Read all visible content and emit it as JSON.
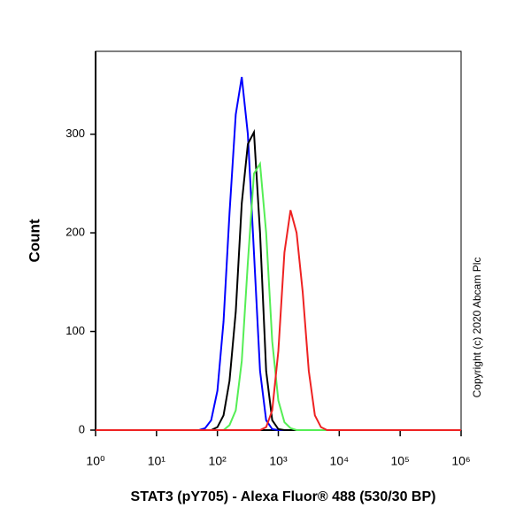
{
  "chart_data": {
    "type": "line",
    "x_label": "STAT3 (pY705) - Alexa Fluor® 488 (530/30 BP)",
    "y_label": "Count",
    "annotation": "Copyright (c) 2020 Abcam Plc",
    "xscale": "log",
    "x": [
      1,
      32,
      50,
      63,
      79,
      100,
      126,
      158,
      200,
      251,
      316,
      398,
      501,
      631,
      794,
      1000,
      1259,
      1585,
      1995,
      2512,
      3162,
      3981,
      5012,
      6310,
      10000,
      1000000
    ],
    "series": [
      {
        "color": "#0000ff",
        "values": [
          0,
          0,
          0,
          2,
          10,
          40,
          110,
          220,
          320,
          358,
          300,
          180,
          60,
          10,
          1,
          0,
          0,
          0,
          0,
          0,
          0,
          0,
          0,
          0,
          0,
          0
        ]
      },
      {
        "color": "#000000",
        "values": [
          0,
          0,
          0,
          0,
          0,
          3,
          15,
          50,
          120,
          230,
          290,
          302,
          200,
          60,
          10,
          1,
          0,
          0,
          0,
          0,
          0,
          0,
          0,
          0,
          0,
          0
        ]
      },
      {
        "color": "#55ee55",
        "values": [
          0,
          0,
          0,
          0,
          0,
          0,
          0,
          5,
          20,
          70,
          170,
          260,
          270,
          200,
          90,
          30,
          8,
          2,
          0,
          0,
          0,
          0,
          0,
          0,
          0,
          0
        ]
      },
      {
        "color": "#ee2222",
        "values": [
          0,
          0,
          0,
          0,
          0,
          0,
          0,
          0,
          0,
          0,
          0,
          0,
          0,
          3,
          20,
          80,
          180,
          223,
          200,
          140,
          60,
          15,
          3,
          0,
          0,
          0
        ]
      }
    ],
    "xlim": [
      1,
      1000000
    ],
    "xticks": [
      {
        "value": 1,
        "label": "10⁰"
      },
      {
        "value": 10,
        "label": "10¹"
      },
      {
        "value": 100,
        "label": "10²"
      },
      {
        "value": 1000,
        "label": "10³"
      },
      {
        "value": 10000,
        "label": "10⁴"
      },
      {
        "value": 100000,
        "label": "10⁵"
      },
      {
        "value": 1000000,
        "label": "10⁶"
      }
    ],
    "ylim": [
      0,
      384
    ],
    "yticks": [
      0,
      100,
      200,
      300
    ]
  }
}
